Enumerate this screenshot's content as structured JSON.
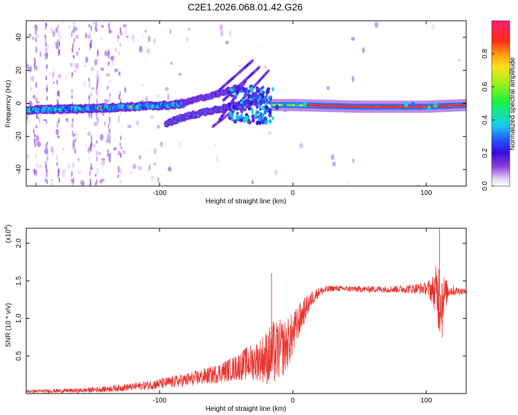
{
  "title": "C2E1.2026.068.01.42.G26",
  "colorbar": {
    "label": "Normalized spectral amplitude",
    "ticks": [
      0.0,
      0.2,
      0.4,
      0.6,
      0.8
    ],
    "tick_labels": [
      "0.0",
      "0.2",
      "0.4",
      "0.6",
      "0.8"
    ],
    "range": [
      0,
      1
    ]
  },
  "chart_data": [
    {
      "type": "heatmap",
      "name": "spectrogram",
      "xlabel": "Height of straight line (km)",
      "ylabel": "Frequency (Hz)",
      "xlim": [
        -200,
        130
      ],
      "ylim": [
        -50,
        50
      ],
      "xticks": [
        -100,
        0,
        100
      ],
      "xtick_labels": [
        "-100",
        "0",
        "100"
      ],
      "yticks": [
        -40,
        -20,
        0,
        20,
        40
      ],
      "ytick_labels": [
        "-40",
        "-20",
        "0",
        "20",
        "40"
      ],
      "features": [
        {
          "name": "main-trace",
          "x": [
            -200,
            -150,
            -120,
            -90,
            -82
          ],
          "y": [
            -4,
            -3,
            -2,
            -1,
            0
          ],
          "amplitude": 0.35
        },
        {
          "name": "branch-upper",
          "x": [
            -82,
            -70,
            -55,
            -40
          ],
          "y": [
            0,
            3,
            6,
            10
          ],
          "amplitude": 0.25
        },
        {
          "name": "branch-lower",
          "x": [
            -95,
            -80,
            -60,
            -40,
            -20
          ],
          "y": [
            -12,
            -8,
            -4,
            -1,
            2
          ],
          "amplitude": 0.3
        },
        {
          "name": "fan-lines",
          "x": [
            -60,
            -25
          ],
          "y": [
            -15,
            25
          ],
          "amplitude": 0.15
        },
        {
          "name": "stable-carrier",
          "x": [
            -15,
            0,
            50,
            100,
            130
          ],
          "y": [
            -1,
            -1,
            -2,
            -2,
            -1
          ],
          "amplitude": 0.9
        }
      ]
    },
    {
      "type": "line",
      "name": "snr",
      "xlabel": "Height of straight line (km)",
      "ylabel": "SNR (10 * v/v)",
      "yscale_label": "(x10",
      "yscale_exponent": "4",
      "xlim": [
        -200,
        130
      ],
      "ylim": [
        0,
        2.2
      ],
      "xticks": [
        -100,
        0,
        100
      ],
      "xtick_labels": [
        "-100",
        "0",
        "100"
      ],
      "yticks": [
        0.5,
        1.0,
        1.5,
        2.0
      ],
      "ytick_labels": [
        "0.5",
        "1.0",
        "1.5",
        "2.0"
      ],
      "color": "#e8312c",
      "envelope": {
        "x": [
          -200,
          -160,
          -140,
          -120,
          -100,
          -80,
          -60,
          -45,
          -35,
          -25,
          -15,
          -10,
          -5,
          0,
          5,
          10,
          15,
          20,
          30,
          50,
          80,
          100,
          105,
          110,
          113,
          117,
          130
        ],
        "mid": [
          0.03,
          0.04,
          0.06,
          0.09,
          0.13,
          0.18,
          0.25,
          0.33,
          0.4,
          0.45,
          0.52,
          0.58,
          0.64,
          0.78,
          0.98,
          1.15,
          1.28,
          1.36,
          1.4,
          1.39,
          1.39,
          1.4,
          1.38,
          1.3,
          1.3,
          1.37,
          1.36
        ],
        "amp": [
          0.02,
          0.03,
          0.04,
          0.05,
          0.07,
          0.09,
          0.12,
          0.16,
          0.22,
          0.28,
          0.45,
          0.4,
          0.35,
          0.3,
          0.22,
          0.15,
          0.1,
          0.06,
          0.04,
          0.04,
          0.05,
          0.08,
          0.2,
          0.55,
          0.3,
          0.08,
          0.03
        ]
      },
      "spikes": [
        {
          "x": -16,
          "y": 1.6
        },
        {
          "x": 110,
          "y": 2.2
        },
        {
          "x": 112,
          "y": 0.75
        }
      ]
    }
  ]
}
